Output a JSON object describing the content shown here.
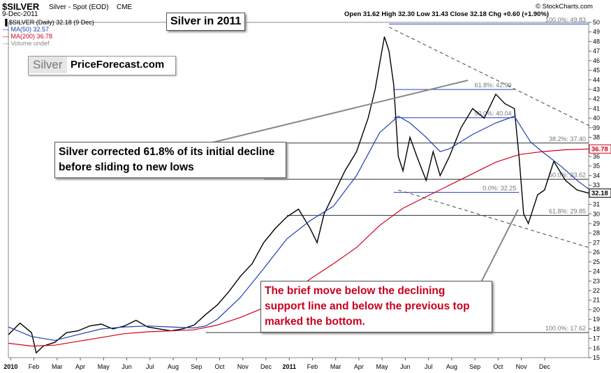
{
  "header": {
    "symbol": "$SILVER",
    "description": "Silver - Spot (EOD)",
    "exchange": "CME",
    "date": "9-Dec-2011",
    "ohlc": "Open 31.62  High 32.30  Low 31.43  Close 32.18  Chg +0.60 (+1.90%)",
    "brand": "© StockCharts.com",
    "legend": [
      {
        "label": "$SILVER (Daily) 32.18 (9 Dec)",
        "color": "#000000"
      },
      {
        "label": "MA(50) 32.57",
        "color": "#1f3fb0"
      },
      {
        "label": "MA(200) 36.78",
        "color": "#d0021b"
      },
      {
        "label": "Volume undef",
        "color": "#888888"
      }
    ]
  },
  "callouts": {
    "title": "Silver in 2011",
    "correction": "Silver corrected 61.8% of its initial decline before sliding to new lows",
    "bottom": "The brief move below the declining support line and below the previous top marked the bottom."
  },
  "logo": {
    "word": "Silver",
    "site": "PriceForecast.com"
  },
  "chart_data": {
    "type": "line",
    "title": "Silver in 2011",
    "x_ticks": [
      "2010",
      "Feb",
      "Mar",
      "Apr",
      "May",
      "Jun",
      "Jul",
      "Aug",
      "Sep",
      "Oct",
      "Nov",
      "Dec",
      "2011",
      "Feb",
      "Mar",
      "Apr",
      "May",
      "Jun",
      "Jul",
      "Aug",
      "Sep",
      "Oct",
      "Nov",
      "Dec"
    ],
    "ylim": [
      15,
      50
    ],
    "y_ticks": [
      15,
      16,
      17,
      18,
      19,
      20,
      21,
      22,
      23,
      24,
      25,
      26,
      27,
      28,
      29,
      30,
      31,
      32,
      33,
      34,
      35,
      36,
      37,
      38,
      39,
      40,
      41,
      42,
      43,
      44,
      45,
      46,
      47,
      48,
      49,
      50
    ],
    "series": [
      {
        "name": "$SILVER (Daily)",
        "color": "#000000",
        "points": [
          [
            0,
            17.4
          ],
          [
            0.5,
            18.6
          ],
          [
            1,
            17.6
          ],
          [
            1.2,
            15.5
          ],
          [
            1.5,
            16.2
          ],
          [
            2,
            16.6
          ],
          [
            2.5,
            17.6
          ],
          [
            3,
            17.8
          ],
          [
            3.5,
            18.3
          ],
          [
            4,
            18.5
          ],
          [
            4.5,
            18.0
          ],
          [
            5,
            18.3
          ],
          [
            5.5,
            18.9
          ],
          [
            6,
            18.2
          ],
          [
            6.5,
            18.0
          ],
          [
            7,
            17.8
          ],
          [
            7.5,
            18.0
          ],
          [
            8,
            18.4
          ],
          [
            8.5,
            19.5
          ],
          [
            9,
            20.5
          ],
          [
            9.5,
            21.9
          ],
          [
            10,
            23.5
          ],
          [
            10.5,
            24.8
          ],
          [
            11,
            27.0
          ],
          [
            11.5,
            28.5
          ],
          [
            12,
            29.7
          ],
          [
            12.5,
            30.5
          ],
          [
            13,
            28.5
          ],
          [
            13.3,
            27.0
          ],
          [
            13.6,
            30.0
          ],
          [
            14,
            32.0
          ],
          [
            14.5,
            34.5
          ],
          [
            15,
            36.5
          ],
          [
            15.5,
            40.0
          ],
          [
            15.8,
            43.0
          ],
          [
            16.2,
            48.5
          ],
          [
            16.4,
            47.0
          ],
          [
            16.6,
            43.5
          ],
          [
            16.8,
            36.0
          ],
          [
            17,
            34.5
          ],
          [
            17.3,
            38.0
          ],
          [
            17.6,
            36.0
          ],
          [
            18,
            33.5
          ],
          [
            18.3,
            36.5
          ],
          [
            18.6,
            34.0
          ],
          [
            19,
            36.0
          ],
          [
            19.5,
            39.0
          ],
          [
            20,
            41.0
          ],
          [
            20.5,
            40.0
          ],
          [
            21,
            42.5
          ],
          [
            21.4,
            41.5
          ],
          [
            21.8,
            41.0
          ],
          [
            22,
            36.0
          ],
          [
            22.2,
            30.0
          ],
          [
            22.4,
            29.0
          ],
          [
            22.8,
            32.0
          ],
          [
            23.1,
            32.5
          ],
          [
            23.5,
            35.5
          ],
          [
            24,
            33.5
          ],
          [
            24.5,
            32.5
          ],
          [
            25,
            32.18
          ]
        ]
      },
      {
        "name": "MA(50)",
        "color": "#1f3fb0",
        "points": [
          [
            0,
            18.2
          ],
          [
            1,
            17.2
          ],
          [
            2,
            16.8
          ],
          [
            3,
            17.4
          ],
          [
            4,
            18.0
          ],
          [
            5,
            18.2
          ],
          [
            6,
            18.3
          ],
          [
            7,
            18.2
          ],
          [
            8,
            18.1
          ],
          [
            8.5,
            18.3
          ],
          [
            9,
            19.0
          ],
          [
            10,
            21.3
          ],
          [
            11,
            24.3
          ],
          [
            12,
            27.4
          ],
          [
            13,
            29.3
          ],
          [
            14,
            30.8
          ],
          [
            15,
            34.0
          ],
          [
            16,
            38.5
          ],
          [
            16.8,
            40.2
          ],
          [
            17.3,
            39.5
          ],
          [
            18,
            38.0
          ],
          [
            18.6,
            36.5
          ],
          [
            19,
            36.8
          ],
          [
            20,
            38.3
          ],
          [
            21,
            39.5
          ],
          [
            21.8,
            40.2
          ],
          [
            22.5,
            37.5
          ],
          [
            23,
            36.5
          ],
          [
            23.8,
            35.0
          ],
          [
            24.5,
            33.5
          ],
          [
            25,
            32.6
          ]
        ]
      },
      {
        "name": "MA(200)",
        "color": "#d0021b",
        "points": [
          [
            0,
            16.5
          ],
          [
            1,
            16.2
          ],
          [
            2,
            16.3
          ],
          [
            3,
            16.7
          ],
          [
            4,
            17.1
          ],
          [
            5,
            17.5
          ],
          [
            6,
            17.7
          ],
          [
            7,
            17.8
          ],
          [
            8,
            17.9
          ],
          [
            9,
            18.4
          ],
          [
            10,
            19.2
          ],
          [
            11,
            20.2
          ],
          [
            12,
            21.5
          ],
          [
            13,
            23.2
          ],
          [
            14,
            24.8
          ],
          [
            15,
            26.5
          ],
          [
            16,
            28.8
          ],
          [
            17,
            30.6
          ],
          [
            18,
            31.8
          ],
          [
            19,
            33.0
          ],
          [
            20,
            34.2
          ],
          [
            21,
            35.4
          ],
          [
            22,
            36.2
          ],
          [
            23,
            36.5
          ],
          [
            24,
            36.7
          ],
          [
            25,
            36.78
          ]
        ]
      }
    ],
    "trendlines": [
      {
        "from": [
          16.4,
          49.5
        ],
        "to": [
          25.2,
          39.0
        ],
        "style": "dashed"
      },
      {
        "from": [
          16.8,
          32.5
        ],
        "to": [
          25.0,
          26.5
        ],
        "style": "dashed"
      }
    ],
    "fibonacci": [
      {
        "label": "100.0%: 49.83",
        "price": 49.83
      },
      {
        "label": "61.8%: 42.99",
        "price": 42.99
      },
      {
        "label": "50.0%: 40.04",
        "price": 40.04
      },
      {
        "label": "38.2%: 37.40",
        "price": 37.4
      },
      {
        "label": "50.0%: 33.62",
        "price": 33.62
      },
      {
        "label": "0.0%: 32.25",
        "price": 32.25
      },
      {
        "label": "61.8%: 29.85",
        "price": 29.85
      },
      {
        "label": "100.0%: 17.62",
        "price": 17.62
      }
    ],
    "price_tags": [
      {
        "label": "36.78",
        "color": "#d0021b"
      },
      {
        "label": "32.18",
        "color": "#000000"
      }
    ]
  }
}
